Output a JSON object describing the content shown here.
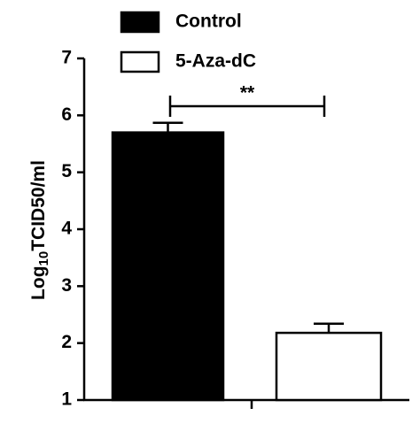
{
  "chart_data": {
    "type": "bar",
    "categories": [
      null
    ],
    "series": [
      {
        "name": "Control",
        "color": "#000000",
        "values": [
          5.7
        ],
        "errors": [
          0.17
        ]
      },
      {
        "name": "5-Aza-dC",
        "color": "#ffffff",
        "values": [
          2.18
        ],
        "errors": [
          0.16
        ]
      }
    ],
    "ylabel": [
      "Log",
      "10",
      "TCID50/ml"
    ],
    "annotation": "**",
    "ylim": [
      1,
      7
    ],
    "yticks": [
      1,
      2,
      3,
      4,
      5,
      6,
      7
    ],
    "grid": false
  }
}
